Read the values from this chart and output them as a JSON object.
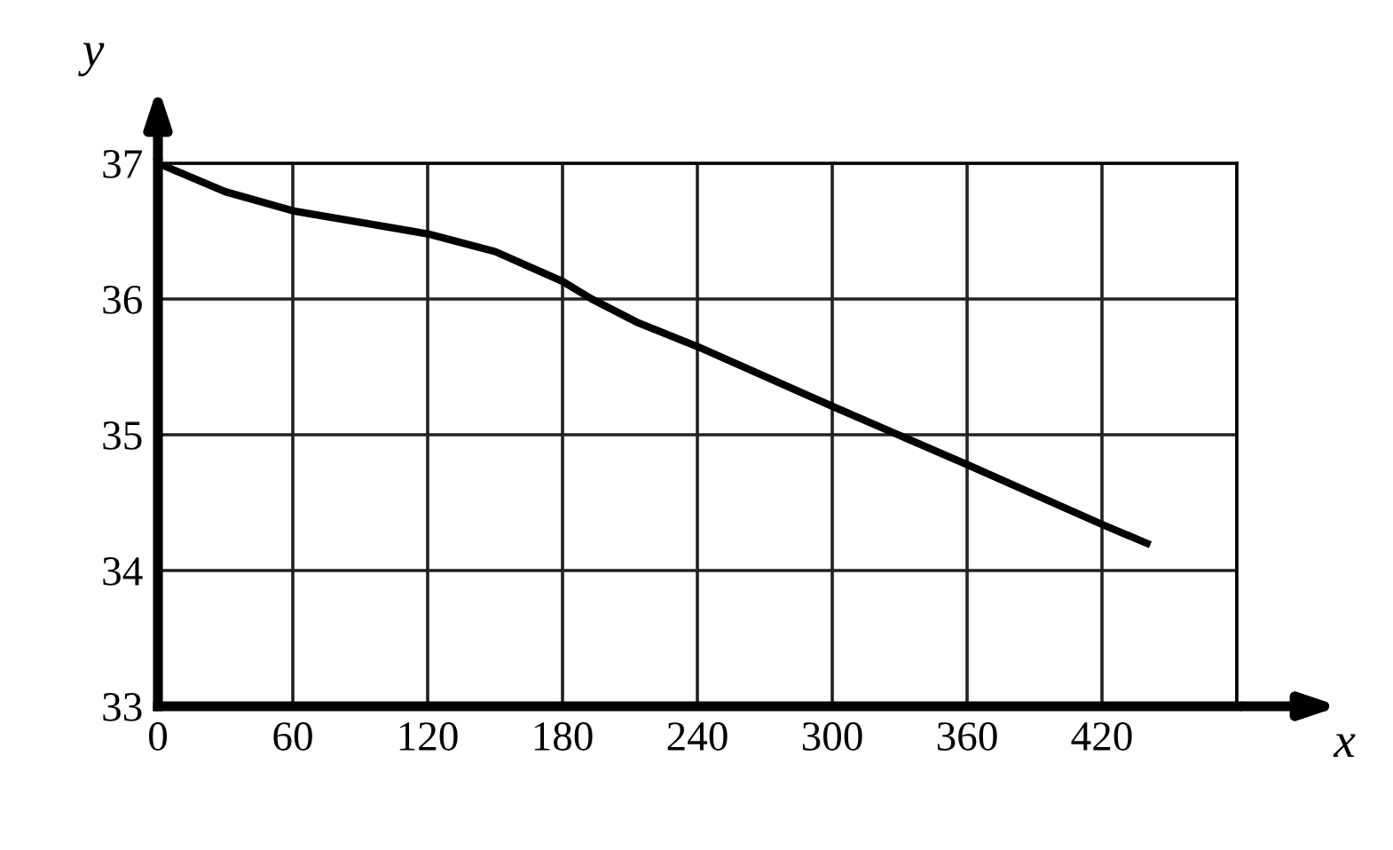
{
  "chart_data": {
    "type": "line",
    "xlabel": "x",
    "ylabel": "y",
    "x": [
      0,
      30,
      60,
      120,
      150,
      180,
      193,
      213,
      240,
      300,
      360,
      420,
      440
    ],
    "series": [
      {
        "color": "#000000",
        "values": [
          37.0,
          36.79,
          36.65,
          36.48,
          36.35,
          36.13,
          36.0,
          35.83,
          35.65,
          35.21,
          34.78,
          34.34,
          34.2
        ]
      }
    ],
    "xlim": [
      0,
      480
    ],
    "ylim": [
      33,
      37
    ],
    "xticks": [
      0,
      60,
      120,
      180,
      240,
      300,
      360,
      420,
      {
        "value": 480,
        "label": null
      }
    ],
    "yticks": [
      33,
      34,
      35,
      36,
      37
    ],
    "grid": true,
    "marker": "none",
    "line_style": "solid"
  }
}
